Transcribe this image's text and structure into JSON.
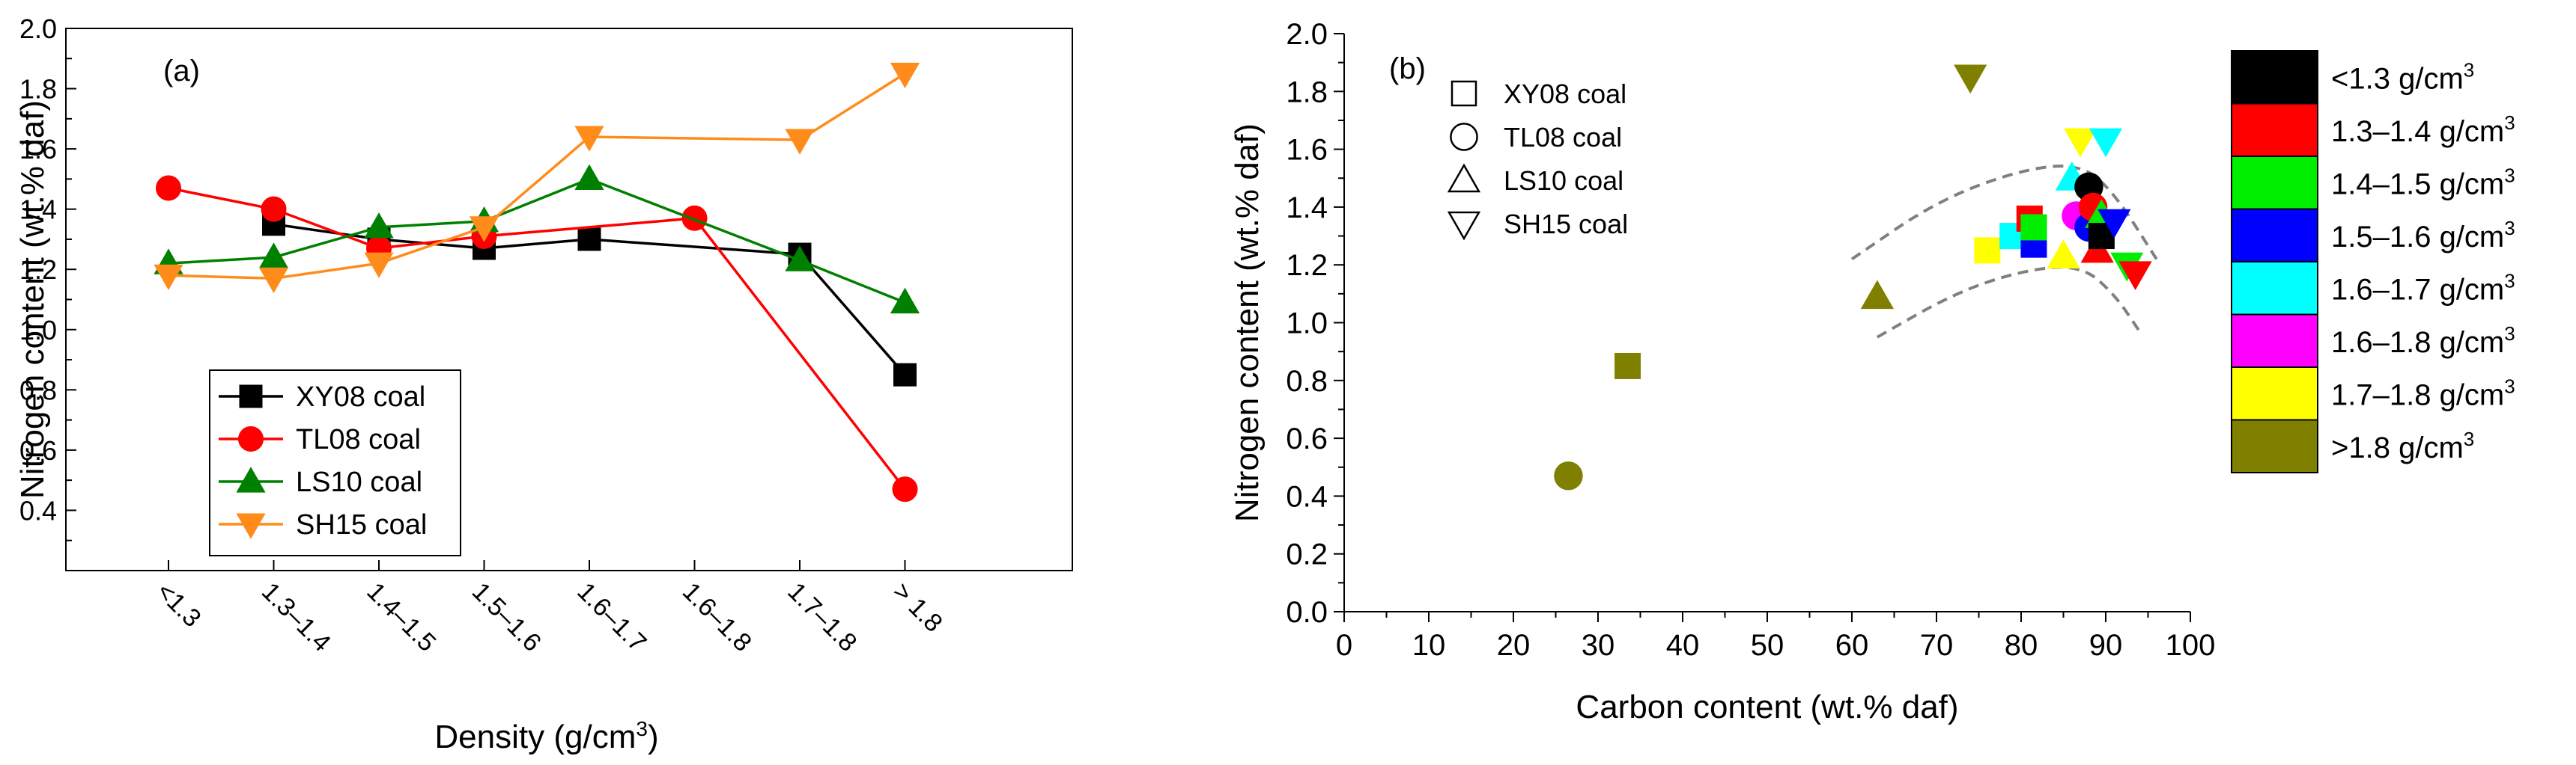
{
  "chart_data": [
    {
      "type": "line",
      "panel_label": "(a)",
      "xlabel": "Density (g/cm",
      "xlabel_sup": "3",
      "xlabel_close": ")",
      "ylabel": "Nitrogen content (wt.% daf)",
      "ylim": [
        0.2,
        2.0
      ],
      "yticks": [
        "0.4",
        "0.6",
        "0.8",
        "1.0",
        "1.2",
        "1.4",
        "1.6",
        "1.8",
        "2.0"
      ],
      "categories": [
        "<1.3",
        "1.3–1.4",
        "1.4–1.5",
        "1.5–1.6",
        "1.6–1.7",
        "1.6–1.8",
        "1.7–1.8",
        "> 1.8"
      ],
      "series": [
        {
          "name": "XY08 coal",
          "marker": "square",
          "color": "#000000",
          "values": [
            null,
            1.35,
            1.3,
            1.27,
            1.3,
            null,
            1.25,
            0.85
          ]
        },
        {
          "name": "TL08 coal",
          "marker": "circle",
          "color": "#ff0000",
          "values": [
            1.47,
            1.4,
            1.27,
            1.31,
            null,
            1.37,
            null,
            0.47
          ]
        },
        {
          "name": "LS10 coal",
          "marker": "triangle-up",
          "color": "#008000",
          "values": [
            1.22,
            1.24,
            1.34,
            1.36,
            1.5,
            null,
            1.23,
            1.09
          ]
        },
        {
          "name": "SH15 coal",
          "marker": "triangle-down",
          "color": "#ff8c1a",
          "values": [
            1.18,
            1.17,
            1.22,
            1.34,
            1.64,
            null,
            1.63,
            1.85
          ]
        }
      ]
    },
    {
      "type": "scatter",
      "panel_label": "(b)",
      "xlabel": "Carbon content (wt.% daf)",
      "ylabel": "Nitrogen content (wt.% daf)",
      "xlim": [
        0,
        100
      ],
      "ylim": [
        0.0,
        2.0
      ],
      "xticks": [
        "0",
        "10",
        "20",
        "30",
        "40",
        "50",
        "60",
        "70",
        "80",
        "90",
        "100"
      ],
      "yticks": [
        "0.0",
        "0.2",
        "0.4",
        "0.6",
        "0.8",
        "1.0",
        "1.2",
        "1.4",
        "1.6",
        "1.8",
        "2.0"
      ],
      "marker_legend": [
        {
          "name": "XY08 coal",
          "marker": "square"
        },
        {
          "name": "TL08 coal",
          "marker": "circle"
        },
        {
          "name": "LS10 coal",
          "marker": "triangle-up"
        },
        {
          "name": "SH15 coal",
          "marker": "triangle-down"
        }
      ],
      "color_legend": [
        {
          "label": "<1.3 g/cm",
          "sup": "3",
          "color": "#000000"
        },
        {
          "label": "1.3–1.4 g/cm",
          "sup": "3",
          "color": "#ff0000"
        },
        {
          "label": "1.4–1.5 g/cm",
          "sup": "3",
          "color": "#00ee00"
        },
        {
          "label": "1.5–1.6 g/cm",
          "sup": "3",
          "color": "#0000ff"
        },
        {
          "label": "1.6–1.7 g/cm",
          "sup": "3",
          "color": "#00ffff"
        },
        {
          "label": "1.6–1.8 g/cm",
          "sup": "3",
          "color": "#ff00ff"
        },
        {
          "label": "1.7–1.8 g/cm",
          "sup": "3",
          "color": "#ffff00"
        },
        {
          "label": ">1.8 g/cm",
          "sup": "3",
          "color": "#808000"
        }
      ],
      "points": [
        {
          "x": 33.5,
          "y": 0.85,
          "marker": "square",
          "color": "#808000"
        },
        {
          "x": 26.5,
          "y": 0.47,
          "marker": "circle",
          "color": "#808000"
        },
        {
          "x": 63,
          "y": 1.09,
          "marker": "triangle-up",
          "color": "#808000"
        },
        {
          "x": 74,
          "y": 1.85,
          "marker": "triangle-down",
          "color": "#808000"
        },
        {
          "x": 76,
          "y": 1.25,
          "marker": "square",
          "color": "#ffff00"
        },
        {
          "x": 79,
          "y": 1.3,
          "marker": "square",
          "color": "#00ffff"
        },
        {
          "x": 81,
          "y": 1.36,
          "marker": "square",
          "color": "#ff0000"
        },
        {
          "x": 81.5,
          "y": 1.27,
          "marker": "square",
          "color": "#0000ff"
        },
        {
          "x": 81.5,
          "y": 1.33,
          "marker": "square",
          "color": "#00ee00"
        },
        {
          "x": 85,
          "y": 1.23,
          "marker": "triangle-up",
          "color": "#ffff00"
        },
        {
          "x": 86,
          "y": 1.5,
          "marker": "triangle-up",
          "color": "#00ffff"
        },
        {
          "x": 86.5,
          "y": 1.37,
          "marker": "circle",
          "color": "#ff00ff"
        },
        {
          "x": 87,
          "y": 1.63,
          "marker": "triangle-down",
          "color": "#ffff00"
        },
        {
          "x": 88,
          "y": 1.47,
          "marker": "circle",
          "color": "#000000"
        },
        {
          "x": 88,
          "y": 1.33,
          "marker": "circle",
          "color": "#0000ff"
        },
        {
          "x": 88.5,
          "y": 1.4,
          "marker": "circle",
          "color": "#ff0000"
        },
        {
          "x": 89,
          "y": 1.25,
          "marker": "triangle-up",
          "color": "#ff0000"
        },
        {
          "x": 89.5,
          "y": 1.37,
          "marker": "triangle-up",
          "color": "#00ee00"
        },
        {
          "x": 89.5,
          "y": 1.3,
          "marker": "square",
          "color": "#000000"
        },
        {
          "x": 90,
          "y": 1.63,
          "marker": "triangle-down",
          "color": "#00ffff"
        },
        {
          "x": 91,
          "y": 1.35,
          "marker": "triangle-down",
          "color": "#0000ff"
        },
        {
          "x": 92.5,
          "y": 1.2,
          "marker": "triangle-down",
          "color": "#00ee00"
        },
        {
          "x": 93.5,
          "y": 1.17,
          "marker": "triangle-down",
          "color": "#ff0000"
        }
      ],
      "envelope_upper": [
        [
          60,
          1.22
        ],
        [
          70,
          1.42
        ],
        [
          80,
          1.53
        ],
        [
          87,
          1.55
        ],
        [
          91,
          1.45
        ],
        [
          96,
          1.22
        ]
      ],
      "envelope_lower": [
        [
          63,
          0.95
        ],
        [
          72,
          1.1
        ],
        [
          80,
          1.18
        ],
        [
          87,
          1.2
        ],
        [
          91,
          1.1
        ],
        [
          94,
          0.97
        ]
      ]
    }
  ]
}
